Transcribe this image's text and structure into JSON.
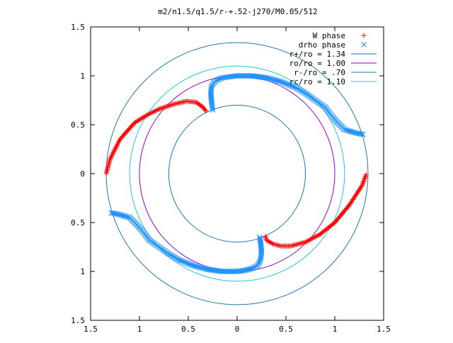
{
  "chart_data": {
    "type": "scatter",
    "title": "m2/n1.5/q1.5/r-+.52-j270/M0.05/512",
    "xlabel": "",
    "ylabel": "",
    "xlim": [
      -1.5,
      1.5
    ],
    "ylim": [
      -1.5,
      1.5
    ],
    "x_ticks": [
      -1.5,
      -1,
      -0.5,
      0,
      0.5,
      1,
      1.5
    ],
    "x_tick_labels": [
      "1.5",
      "1",
      "0.5",
      "0",
      "0.5",
      "1",
      "1.5"
    ],
    "y_ticks": [
      1.5,
      1,
      0.5,
      0,
      -0.5,
      -1,
      -1.5
    ],
    "y_tick_labels": [
      "1.5",
      "1",
      "0.5",
      "0",
      "0.5",
      "1",
      "1.5"
    ],
    "grid": false,
    "legend_position": "top-right",
    "circles": [
      {
        "name": "r+/ro = 1.34",
        "radius": 1.34,
        "color": "#1f77b4"
      },
      {
        "name": "ro/ro = 1.00",
        "radius": 1.0,
        "color": "#9400d3"
      },
      {
        "name": "r-/ro = .70",
        "radius": 0.7,
        "color": "#1f77b4"
      },
      {
        "name": "rc/ro = 1.10",
        "radius": 1.1,
        "color": "#20c8d8"
      }
    ],
    "series": [
      {
        "name": "W phase",
        "marker": "plus",
        "color": "#ff0000",
        "arcs": [
          {
            "points": [
              [
                -1.34,
                0.0
              ],
              [
                -1.3,
                0.15
              ],
              [
                -1.2,
                0.35
              ],
              [
                -1.05,
                0.52
              ],
              [
                -0.92,
                0.6
              ],
              [
                -0.8,
                0.66
              ],
              [
                -0.65,
                0.71
              ],
              [
                -0.52,
                0.74
              ],
              [
                -0.42,
                0.73
              ],
              [
                -0.35,
                0.68
              ],
              [
                -0.32,
                0.64
              ]
            ]
          },
          {
            "points": [
              [
                1.32,
                -0.01
              ],
              [
                1.28,
                -0.12
              ],
              [
                1.15,
                -0.32
              ],
              [
                1.0,
                -0.5
              ],
              [
                0.85,
                -0.62
              ],
              [
                0.7,
                -0.7
              ],
              [
                0.55,
                -0.74
              ],
              [
                0.45,
                -0.74
              ],
              [
                0.37,
                -0.72
              ],
              [
                0.3,
                -0.68
              ],
              [
                0.29,
                -0.64
              ]
            ]
          }
        ]
      },
      {
        "name": "drho phase",
        "marker": "cross",
        "color": "#1e90ff",
        "arcs": [
          {
            "points": [
              [
                1.29,
                0.4
              ],
              [
                1.2,
                0.42
              ],
              [
                1.1,
                0.45
              ],
              [
                1.02,
                0.53
              ],
              [
                0.96,
                0.6
              ],
              [
                0.9,
                0.68
              ],
              [
                0.8,
                0.75
              ],
              [
                0.7,
                0.82
              ],
              [
                0.6,
                0.88
              ],
              [
                0.45,
                0.94
              ],
              [
                0.3,
                0.98
              ],
              [
                0.15,
                1.0
              ],
              [
                0.0,
                1.0
              ],
              [
                -0.08,
                0.99
              ],
              [
                -0.15,
                0.98
              ],
              [
                -0.22,
                0.95
              ],
              [
                -0.26,
                0.9
              ],
              [
                -0.27,
                0.82
              ],
              [
                -0.26,
                0.72
              ],
              [
                -0.25,
                0.65
              ]
            ]
          },
          {
            "points": [
              [
                -1.29,
                -0.4
              ],
              [
                -1.2,
                -0.42
              ],
              [
                -1.1,
                -0.45
              ],
              [
                -1.02,
                -0.53
              ],
              [
                -0.96,
                -0.6
              ],
              [
                -0.9,
                -0.68
              ],
              [
                -0.8,
                -0.75
              ],
              [
                -0.7,
                -0.82
              ],
              [
                -0.6,
                -0.88
              ],
              [
                -0.45,
                -0.94
              ],
              [
                -0.3,
                -0.98
              ],
              [
                -0.15,
                -1.0
              ],
              [
                0.0,
                -1.0
              ],
              [
                0.08,
                -0.99
              ],
              [
                0.15,
                -0.97
              ],
              [
                0.21,
                -0.94
              ],
              [
                0.24,
                -0.88
              ],
              [
                0.25,
                -0.8
              ],
              [
                0.24,
                -0.7
              ],
              [
                0.23,
                -0.65
              ]
            ]
          }
        ]
      }
    ]
  }
}
